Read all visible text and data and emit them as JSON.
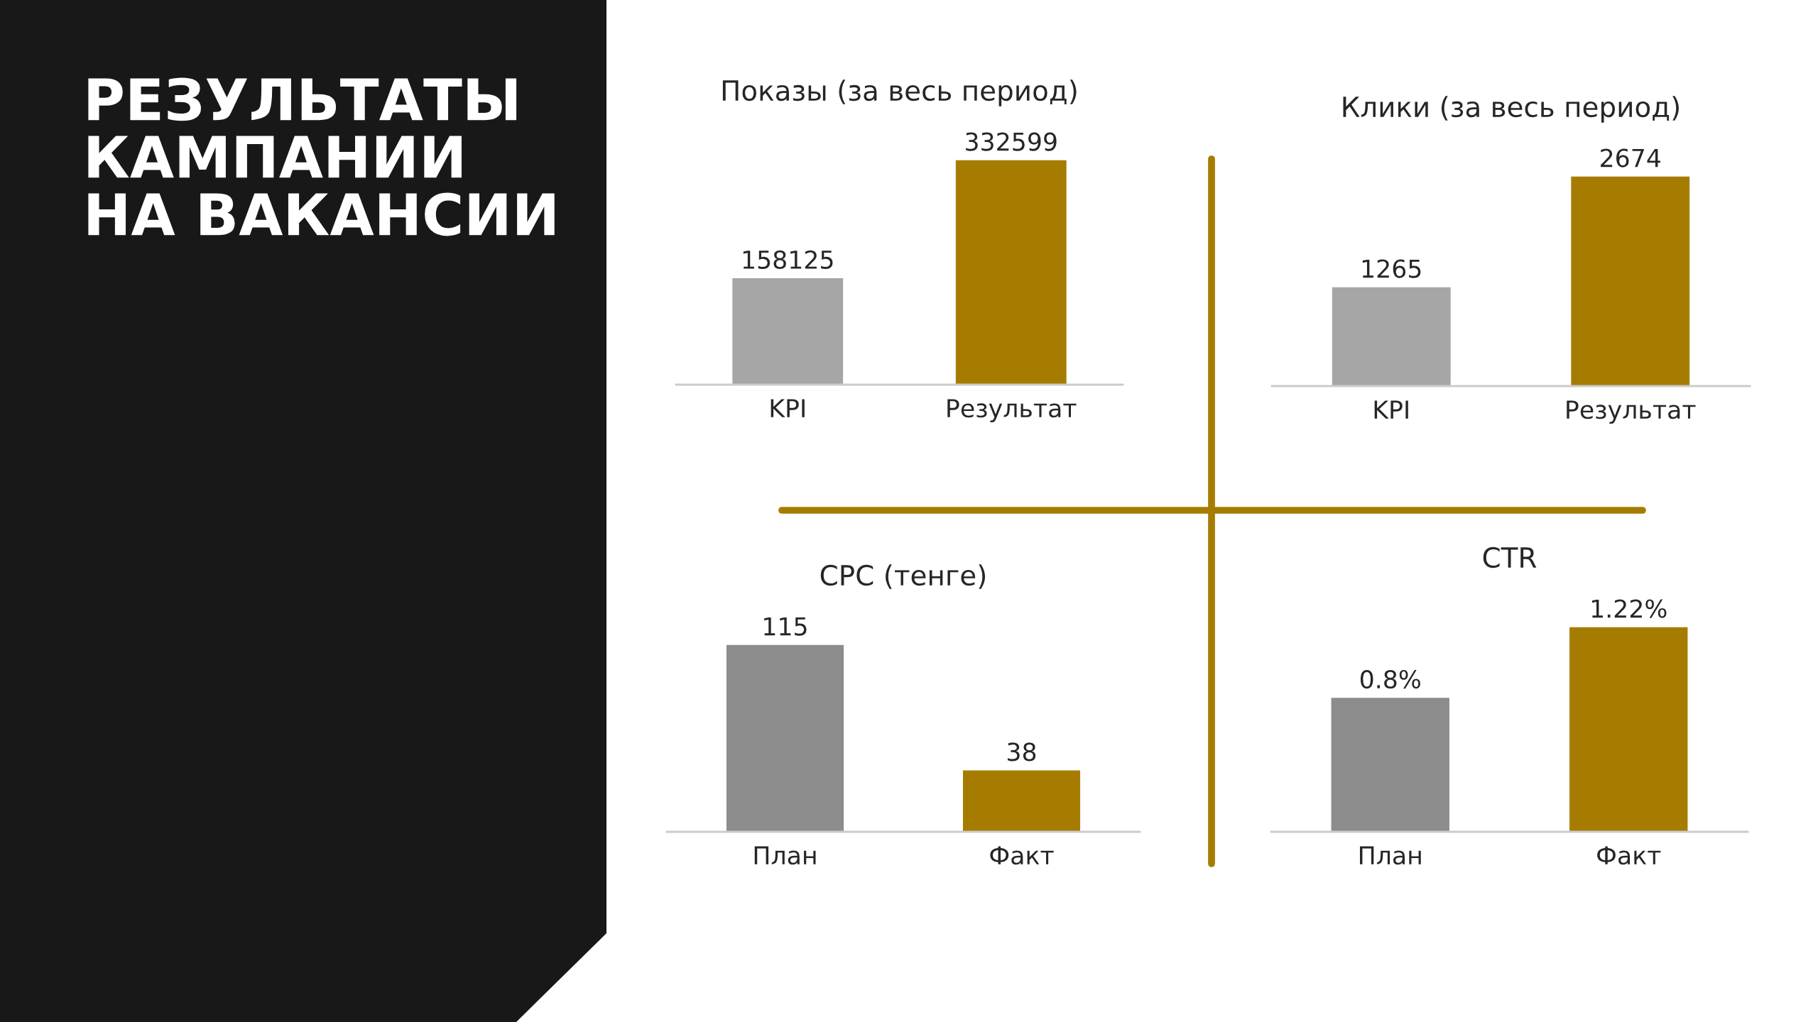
{
  "chart_data": [
    {
      "type": "other",
      "title": "РЕЗУЛЬТАТЫ\nКАМПАНИИ\nНА ВАКАНСИИ"
    },
    {
      "type": "bar",
      "title": "Показы (за весь период)",
      "categories": [
        "KPI",
        "Результат"
      ],
      "values": [
        158125,
        332599
      ],
      "colors": [
        "#a6a6a6",
        "#a67c00"
      ],
      "data_labels": true
    },
    {
      "type": "bar",
      "title": "Клики (за весь период)",
      "categories": [
        "KPI",
        "Результат"
      ],
      "values": [
        1265,
        2674
      ],
      "colors": [
        "#a6a6a6",
        "#a67c00"
      ],
      "data_labels": true
    },
    {
      "type": "bar",
      "title": "CPC (тенге)",
      "categories": [
        "План",
        "Факт"
      ],
      "values": [
        115,
        38
      ],
      "colors": [
        "#8c8c8c",
        "#a67c00"
      ],
      "data_labels": true
    },
    {
      "type": "bar",
      "title": "CTR",
      "categories": [
        "План",
        "Факт"
      ],
      "values": [
        0.8,
        1.22
      ],
      "colors": [
        "#8c8c8c",
        "#a67c00"
      ],
      "value_labels": [
        "0.8%",
        "1.22%"
      ]
    }
  ]
}
